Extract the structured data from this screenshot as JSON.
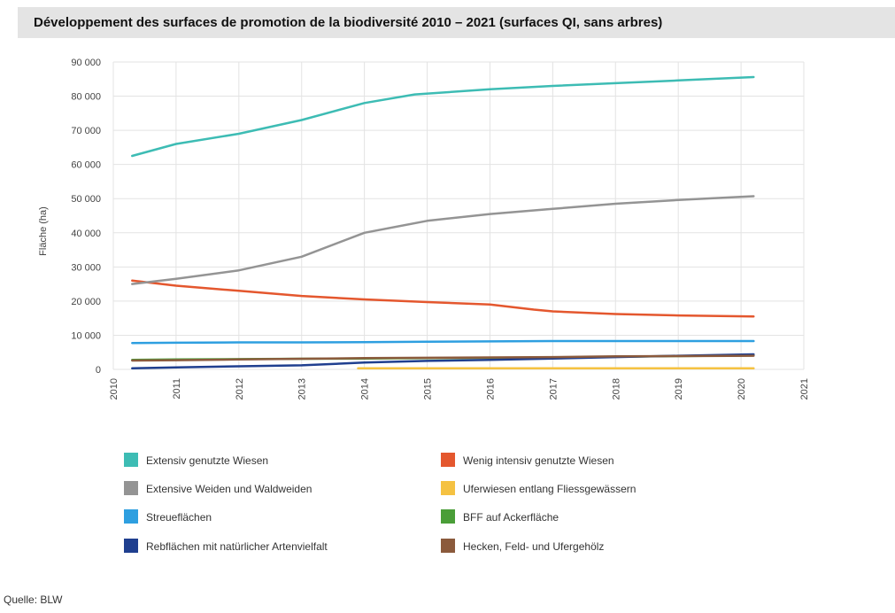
{
  "chart_data": {
    "type": "line",
    "title": "Développement des surfaces de promotion de la biodiversité 2010 – 2021 (surfaces QI, sans arbres)",
    "ylabel": "Fläche (ha)",
    "xlabel": "",
    "ylim": [
      0,
      90000
    ],
    "xlim": [
      2010,
      2021
    ],
    "y_ticks": [
      0,
      10000,
      20000,
      30000,
      40000,
      50000,
      60000,
      70000,
      80000,
      90000
    ],
    "y_tick_labels": [
      "0",
      "10 000",
      "20 000",
      "30 000",
      "40 000",
      "50 000",
      "60 000",
      "70 000",
      "80 000",
      "90 000"
    ],
    "x_ticks": [
      2010,
      2011,
      2012,
      2013,
      2014,
      2015,
      2016,
      2017,
      2018,
      2019,
      2020,
      2021
    ],
    "x_tick_labels": [
      "2010",
      "2011",
      "2012",
      "2013",
      "2014",
      "2015",
      "2016",
      "2017",
      "2018",
      "2019",
      "2020",
      "2021"
    ],
    "grid": true,
    "legend_position": "bottom",
    "series": [
      {
        "name": "Extensiv genutzte Wiesen",
        "color": "#3dbcb4",
        "x": [
          2010.3,
          2011,
          2012,
          2013,
          2014,
          2014.8,
          2016,
          2017,
          2018,
          2019,
          2020.2
        ],
        "y": [
          62500,
          66000,
          69000,
          73000,
          78000,
          80500,
          82000,
          83000,
          83800,
          84600,
          85600
        ]
      },
      {
        "name": "Wenig intensiv genutzte Wiesen",
        "color": "#e4572e",
        "x": [
          2010.3,
          2011,
          2012,
          2013,
          2014,
          2015,
          2016,
          2016.7,
          2017,
          2018,
          2019,
          2020.2
        ],
        "y": [
          26000,
          24500,
          23000,
          21500,
          20500,
          19700,
          19000,
          17500,
          17000,
          16200,
          15800,
          15500
        ]
      },
      {
        "name": "Extensive Weiden und Waldweiden",
        "color": "#949494",
        "x": [
          2010.3,
          2011,
          2012,
          2013,
          2014,
          2015,
          2016,
          2017,
          2018,
          2019,
          2020.2
        ],
        "y": [
          25000,
          26500,
          29000,
          33000,
          40000,
          43500,
          45500,
          47000,
          48500,
          49600,
          50700
        ]
      },
      {
        "name": "Uferwiesen entlang Fliessgewässern",
        "color": "#f5c242",
        "x": [
          2013.9,
          2015,
          2016,
          2017,
          2018,
          2019,
          2020.2
        ],
        "y": [
          300,
          300,
          300,
          300,
          300,
          300,
          300
        ]
      },
      {
        "name": "Streueflächen",
        "color": "#2e9fe0",
        "x": [
          2010.3,
          2011,
          2012,
          2013,
          2014,
          2015,
          2016,
          2017,
          2018,
          2019,
          2020.2
        ],
        "y": [
          7700,
          7800,
          7900,
          7900,
          8000,
          8100,
          8200,
          8300,
          8300,
          8300,
          8300
        ]
      },
      {
        "name": "BFF auf Ackerfläche",
        "color": "#4a9e38",
        "x": [
          2010.3,
          2011,
          2012,
          2013,
          2014,
          2015,
          2016,
          2017,
          2018,
          2019,
          2020.2
        ],
        "y": [
          2800,
          2900,
          3000,
          3100,
          3200,
          3300,
          3400,
          3500,
          3700,
          3900,
          4100
        ]
      },
      {
        "name": "Rebflächen mit natürlicher Artenvielfalt",
        "color": "#1f3f8f",
        "x": [
          2010.3,
          2011,
          2012,
          2013,
          2014,
          2015,
          2016,
          2017,
          2018,
          2019,
          2020.2
        ],
        "y": [
          300,
          600,
          900,
          1200,
          2000,
          2500,
          2800,
          3200,
          3600,
          4000,
          4400
        ]
      },
      {
        "name": "Hecken, Feld- und Ufergehölz",
        "color": "#8b5a3c",
        "x": [
          2010.3,
          2011,
          2012,
          2013,
          2014,
          2015,
          2016,
          2017,
          2018,
          2019,
          2020.2
        ],
        "y": [
          2600,
          2700,
          2900,
          3100,
          3300,
          3400,
          3500,
          3600,
          3800,
          3900,
          4000
        ]
      }
    ],
    "legend_order": [
      0,
      1,
      2,
      3,
      4,
      5,
      6,
      7
    ]
  },
  "source": "Quelle: BLW"
}
